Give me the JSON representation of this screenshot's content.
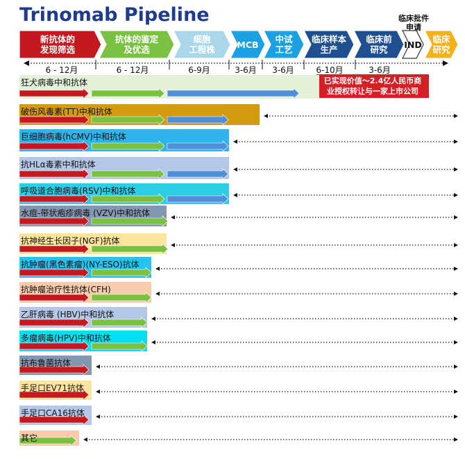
{
  "title": "Trinomab Pipeline",
  "ind_note": "临床批件\n申请",
  "stages": [
    {
      "label": "新抗体的\n发现筛选",
      "color": "#c41a1f",
      "dark": false
    },
    {
      "label": "抗体的鉴定\n及优选",
      "color": "#7ac142",
      "dark": false
    },
    {
      "label": "细胞\n工程株",
      "color": "#a9d6e8",
      "dark": false
    },
    {
      "label": "MCB",
      "color": "#1ba1e2",
      "dark": false
    },
    {
      "label": "中试\n工艺",
      "color": "#1ba1e2",
      "dark": false
    },
    {
      "label": "临床样本\n生产",
      "color": "#1d4f91",
      "dark": false
    },
    {
      "label": "临床前\n研究",
      "color": "#1d4f91",
      "dark": false
    },
    {
      "label": "IND",
      "color": "#ffffff",
      "dark": true
    },
    {
      "label": "临床\n研究",
      "color": "#f2b21a",
      "dark": false
    }
  ],
  "durations": [
    "6 - 12月",
    "6 - 12月",
    "6-9月",
    "3-6月",
    "3-6月",
    "6-10月",
    "3-6月"
  ],
  "value_note": "已实现价值～2.4亿人民币商\n业授权转让与一家上市公司",
  "programs": [
    {
      "name": "狂犬病毒中和抗体",
      "bg": "#e3f1d9",
      "stages_done": 4
    },
    {
      "name": "破伤风毒素(TT)中和抗体",
      "bg": "#d39a12",
      "stages_done": 4
    },
    {
      "name": "巨细胞病毒(hCMV)中和抗体",
      "bg": "#2bb5ea",
      "stages_done": 3
    },
    {
      "name": "抗HLα毒素中和抗体",
      "bg": "#b4c7e7",
      "stages_done": 3
    },
    {
      "name": "呼吸道合胞病毒(RSV)中和抗体",
      "bg": "#2ecde6",
      "stages_done": 3
    },
    {
      "name": "水痘-带状疱疹病毒 (VZV)中和抗体",
      "bg": "#8497b0",
      "stages_done": 2
    },
    {
      "name": "抗神经生长因子(NGF)抗体",
      "bg": "#fde49c",
      "stages_done": 2
    },
    {
      "name": "抗肿瘤(黑色素瘤)(NY-ESO)抗体",
      "bg": "#24c4ef",
      "stages_done": 2
    },
    {
      "name": "抗肿瘤治疗性抗体(CFH)",
      "bg": "#f8cbad",
      "stages_done": 2
    },
    {
      "name": "乙肝病毒 (HBV)中和抗体",
      "bg": "#b4c7e7",
      "stages_done": 2
    },
    {
      "name": "多瘤病毒(HPV)中和抗体",
      "bg": "#00e0f0",
      "stages_done": 2
    },
    {
      "name": "抗布鲁菌抗体",
      "bg": "#8497b0",
      "stages_done": 1
    },
    {
      "name": "手足口EV71抗体",
      "bg": "#fde49c",
      "stages_done": 1
    },
    {
      "name": "手足口CA16抗体",
      "bg": "#b4c7e7",
      "stages_done": 1
    },
    {
      "name": "其它",
      "bg": "#f8cbad",
      "stages_done": 1
    }
  ]
}
